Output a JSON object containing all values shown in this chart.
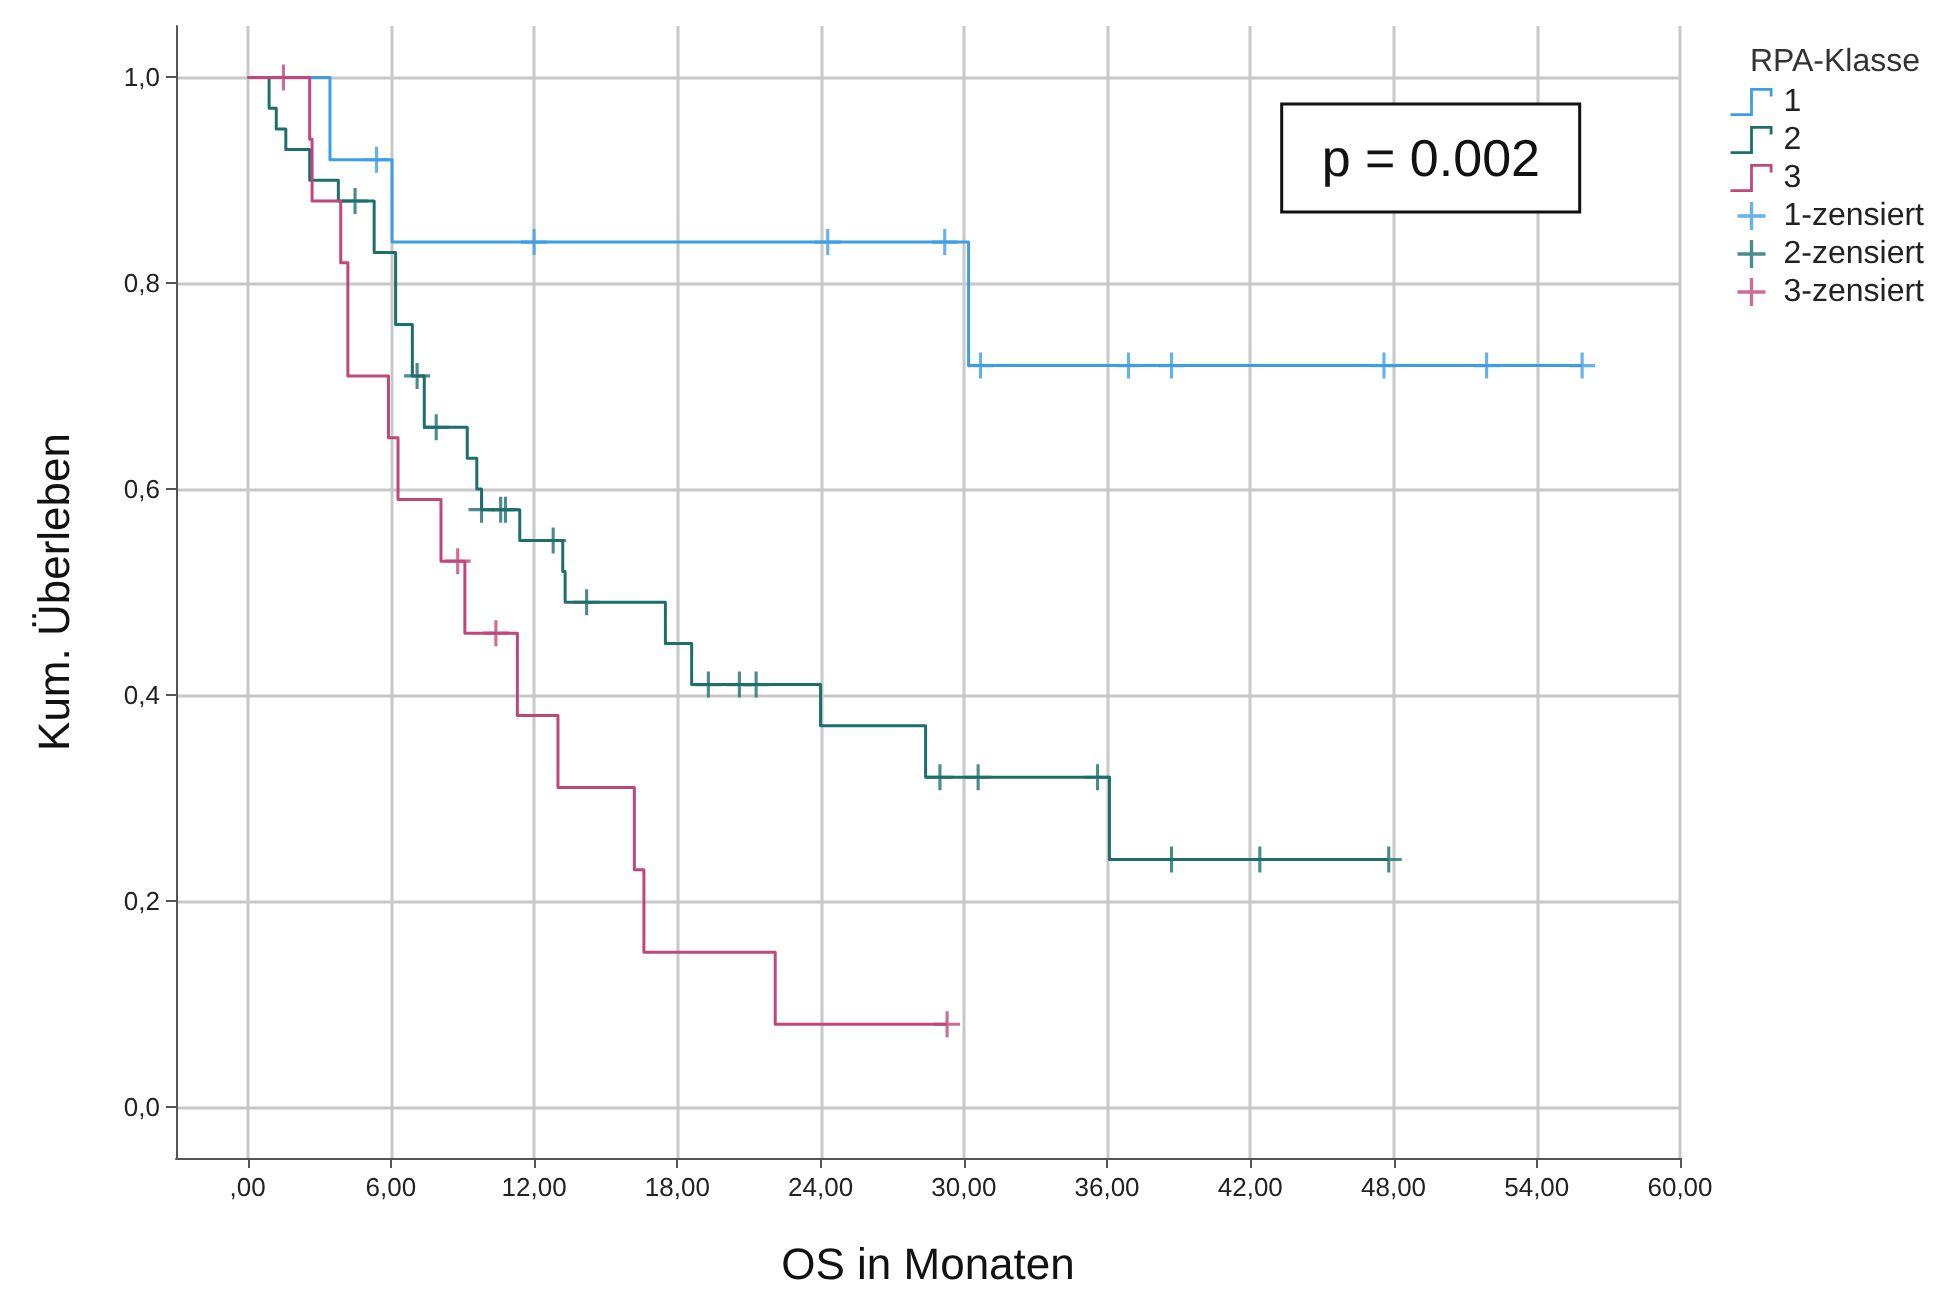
{
  "chart_data": {
    "type": "step",
    "xlabel": "OS in Monaten",
    "ylabel": "Kum. Überleben",
    "legend_title": "RPA-Klasse",
    "annotations": [
      "p = 0.002"
    ],
    "xlim": [
      -3,
      60
    ],
    "ylim": [
      -0.05,
      1.05
    ],
    "xticks": [
      {
        "value": 0,
        "label": ",00"
      },
      {
        "value": 6,
        "label": "6,00"
      },
      {
        "value": 12,
        "label": "12,00"
      },
      {
        "value": 18,
        "label": "18,00"
      },
      {
        "value": 24,
        "label": "24,00"
      },
      {
        "value": 30,
        "label": "30,00"
      },
      {
        "value": 36,
        "label": "36,00"
      },
      {
        "value": 42,
        "label": "42,00"
      },
      {
        "value": 48,
        "label": "48,00"
      },
      {
        "value": 54,
        "label": "54,00"
      },
      {
        "value": 60,
        "label": "60,00"
      }
    ],
    "yticks": [
      {
        "value": 0,
        "label": "0,0"
      },
      {
        "value": 0.2,
        "label": "0,2"
      },
      {
        "value": 0.4,
        "label": "0,4"
      },
      {
        "value": 0.6,
        "label": "0,6"
      },
      {
        "value": 0.8,
        "label": "0,8"
      },
      {
        "value": 1,
        "label": "1,0"
      }
    ],
    "grid": true,
    "legend": "top right",
    "series": [
      {
        "name": "1",
        "marker": "none",
        "color": "#3d9ee6",
        "x": [
          0,
          3.45,
          6.05,
          30.2,
          55.9
        ],
        "values": [
          1,
          0.92,
          0.84,
          0.72,
          0.72
        ]
      },
      {
        "name": "2",
        "marker": "none",
        "color": "#1f6e6e",
        "x": [
          0,
          0.9,
          1.2,
          1.6,
          2.6,
          3.8,
          5.3,
          6.2,
          6.9,
          7.4,
          9.2,
          9.6,
          9.8,
          11.4,
          13.2,
          13.3,
          17.5,
          18.6,
          24.0,
          28.4,
          36.1,
          47.8
        ],
        "values": [
          1,
          0.97,
          0.95,
          0.93,
          0.9,
          0.88,
          0.83,
          0.76,
          0.71,
          0.66,
          0.63,
          0.6,
          0.58,
          0.55,
          0.52,
          0.49,
          0.45,
          0.41,
          0.37,
          0.32,
          0.24,
          0.24
        ]
      },
      {
        "name": "3",
        "marker": "none",
        "color": "#c0477c",
        "x": [
          0,
          2.6,
          2.7,
          3.9,
          4.2,
          5.9,
          6.3,
          8.1,
          9.1,
          11.3,
          13.0,
          16.2,
          16.6,
          22.1,
          29.3
        ],
        "values": [
          1,
          0.94,
          0.88,
          0.82,
          0.71,
          0.65,
          0.59,
          0.53,
          0.46,
          0.38,
          0.31,
          0.23,
          0.15,
          0.08,
          0.08
        ]
      },
      {
        "name": "1-zensiert",
        "type": "scatter",
        "marker": "cross",
        "color": "#3d9ee6",
        "x": [
          5.4,
          12.0,
          24.3,
          29.2,
          30.7,
          36.9,
          38.7,
          47.6,
          51.9,
          55.9
        ],
        "values": [
          0.92,
          0.84,
          0.84,
          0.84,
          0.72,
          0.72,
          0.72,
          0.72,
          0.72,
          0.72
        ]
      },
      {
        "name": "2-zensiert",
        "type": "scatter",
        "marker": "cross",
        "color": "#1f6e6e",
        "x": [
          4.5,
          7.1,
          7.9,
          9.8,
          10.6,
          10.8,
          12.8,
          14.2,
          19.3,
          20.6,
          21.3,
          29.0,
          30.6,
          35.6,
          38.7,
          42.4,
          47.8
        ],
        "values": [
          0.88,
          0.71,
          0.66,
          0.58,
          0.58,
          0.58,
          0.55,
          0.49,
          0.41,
          0.41,
          0.41,
          0.32,
          0.32,
          0.32,
          0.24,
          0.24,
          0.24
        ]
      },
      {
        "name": "3-zensiert",
        "type": "scatter",
        "marker": "cross",
        "color": "#c0477c",
        "x": [
          1.5,
          8.8,
          10.4,
          29.3
        ],
        "values": [
          1,
          0.53,
          0.46,
          0.08
        ]
      }
    ]
  }
}
